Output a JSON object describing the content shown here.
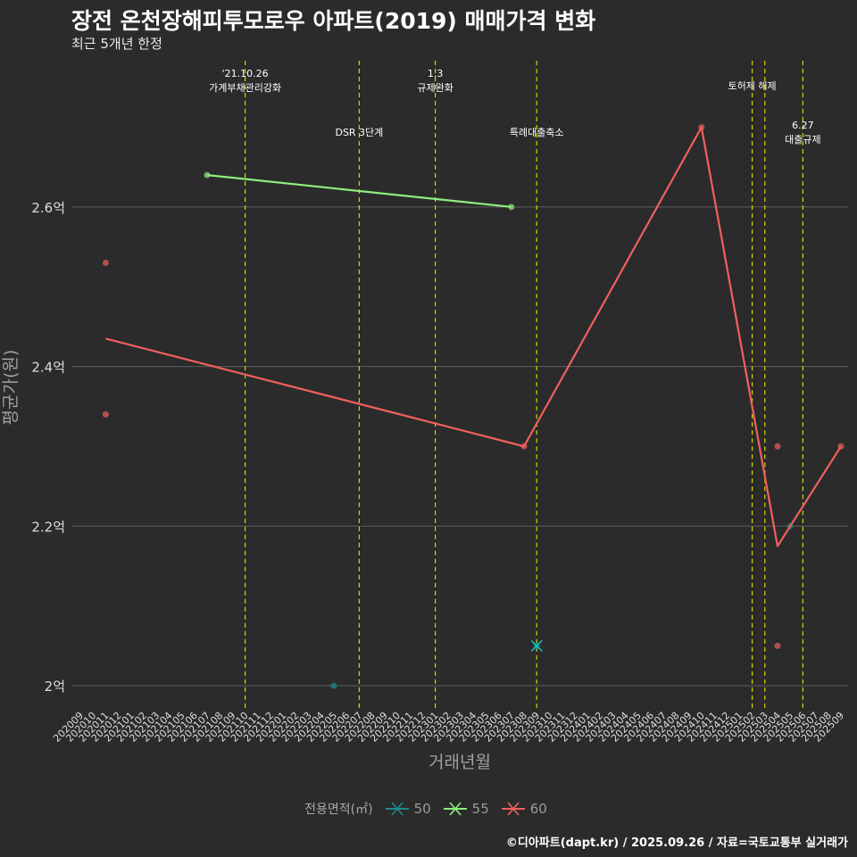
{
  "header": {
    "title": "장전 온천장해피투모로우 아파트(2019) 매매가격 변화",
    "subtitle": "최근 5개년 한정"
  },
  "caption": "©디아파트(dapt.kr) / 2025.09.26 / 자료=국토교통부 실거래가",
  "chart_data": {
    "type": "line",
    "xlabel": "거래년월",
    "ylabel": "평균가(원)",
    "yticks": [
      {
        "value": 2.0,
        "label": "2억"
      },
      {
        "value": 2.2,
        "label": "2.2억"
      },
      {
        "value": 2.4,
        "label": "2.4억"
      },
      {
        "value": 2.6,
        "label": "2.6억"
      }
    ],
    "ylim": [
      1.97,
      2.79
    ],
    "grid": true,
    "legend_position": "bottom",
    "x_categories": [
      "202009",
      "202010",
      "202011",
      "202012",
      "202101",
      "202102",
      "202103",
      "202104",
      "202105",
      "202106",
      "202107",
      "202108",
      "202109",
      "202110",
      "202111",
      "202112",
      "202201",
      "202202",
      "202203",
      "202204",
      "202205",
      "202206",
      "202207",
      "202208",
      "202209",
      "202210",
      "202211",
      "202212",
      "202301",
      "202302",
      "202303",
      "202304",
      "202305",
      "202306",
      "202307",
      "202308",
      "202309",
      "202310",
      "202311",
      "202312",
      "202401",
      "202402",
      "202403",
      "202404",
      "202405",
      "202406",
      "202407",
      "202408",
      "202409",
      "202410",
      "202411",
      "202412",
      "202501",
      "202502",
      "202503",
      "202504",
      "202505",
      "202506",
      "202507",
      "202508",
      "202509"
    ],
    "legend": {
      "title": "전용면적(㎡)",
      "entries": [
        {
          "label": "50",
          "color": "#1f8a8a"
        },
        {
          "label": "55",
          "color": "#90ee7e"
        },
        {
          "label": "60",
          "color": "#f0605d"
        }
      ]
    },
    "series": [
      {
        "name": "50",
        "color": "#1f8a8a",
        "line": false,
        "points": [
          {
            "x": "202205",
            "y": 2.0
          },
          {
            "x": "202309",
            "y": 2.05
          },
          {
            "x": "202505",
            "y": 2.2
          }
        ]
      },
      {
        "name": "55",
        "color": "#90ee7e",
        "line": true,
        "points": [
          {
            "x": "202107",
            "y": 2.64
          },
          {
            "x": "202307",
            "y": 2.6
          }
        ]
      },
      {
        "name": "60",
        "color": "#f0605d",
        "line": true,
        "points": [
          {
            "x": "202011",
            "y": 2.435
          },
          {
            "x": "202308",
            "y": 2.3
          },
          {
            "x": "202410",
            "y": 2.7
          },
          {
            "x": "202504",
            "y": 2.175
          },
          {
            "x": "202509",
            "y": 2.3
          }
        ],
        "raw_points": [
          {
            "x": "202011",
            "y": 2.53
          },
          {
            "x": "202011",
            "y": 2.34
          },
          {
            "x": "202308",
            "y": 2.3
          },
          {
            "x": "202410",
            "y": 2.7
          },
          {
            "x": "202504",
            "y": 2.3
          },
          {
            "x": "202504",
            "y": 2.05
          },
          {
            "x": "202509",
            "y": 2.3
          }
        ]
      }
    ],
    "events": [
      {
        "x": "202110",
        "label": "'21.10.26\n가계부채관리강화",
        "row": 1
      },
      {
        "x": "202207",
        "label": "DSR 3단계",
        "row": 2
      },
      {
        "x": "202301",
        "label": "1.3\n규제완화",
        "row": 1
      },
      {
        "x": "202309",
        "label": "특례대출축소",
        "row": 2
      },
      {
        "x": "202502",
        "label": "토허제 해제",
        "row": 1
      },
      {
        "x": "202503",
        "label": "",
        "row": 1
      },
      {
        "x": "202506",
        "label": "6.27\n대출규제",
        "row": 2
      }
    ],
    "colors": {
      "background": "#2b2b2b",
      "grid": "#5e5e5e",
      "event_line": "#d4d400",
      "axis_text": "#a0a0a0",
      "tick_text": "#dddddd"
    }
  }
}
